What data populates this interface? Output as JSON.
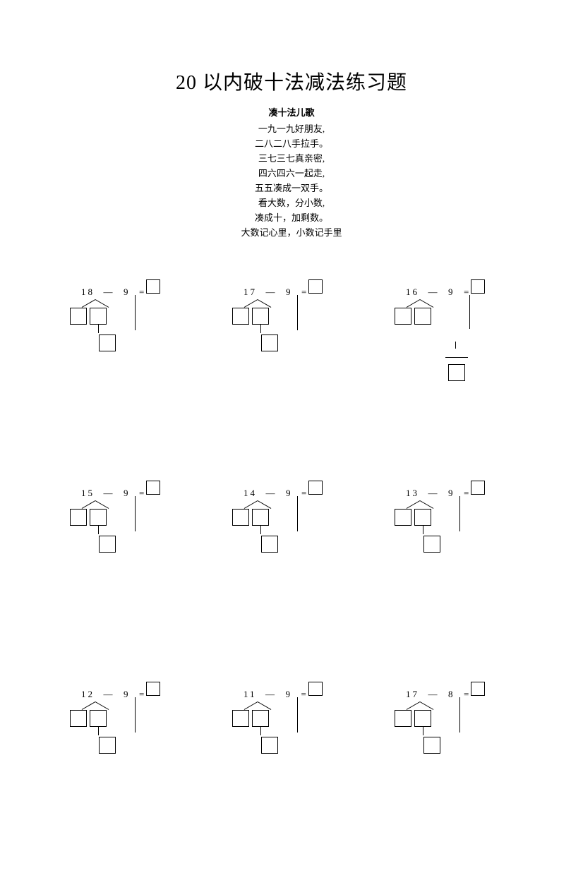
{
  "title": "20 以内破十法减法练习题",
  "subtitle": "凑十法儿歌",
  "poem": [
    "一九一九好朋友,",
    "二八二八手拉手。",
    "三七三七真亲密,",
    "四六四六一起走,",
    "五五凑成一双手。",
    "看大数，分小数,",
    "凑成十，加剩数。",
    "大数记心里，小数记手里"
  ],
  "problems": [
    {
      "a": "18",
      "op": "—",
      "b": "9",
      "eq": "="
    },
    {
      "a": "17",
      "op": "—",
      "b": "9",
      "eq": "="
    },
    {
      "a": "16",
      "op": "—",
      "b": "9",
      "eq": "="
    },
    {
      "a": "15",
      "op": "—",
      "b": "9",
      "eq": "="
    },
    {
      "a": "14",
      "op": "—",
      "b": "9",
      "eq": "="
    },
    {
      "a": "13",
      "op": "—",
      "b": "9",
      "eq": "="
    },
    {
      "a": "12",
      "op": "—",
      "b": "9",
      "eq": "="
    },
    {
      "a": "11",
      "op": "—",
      "b": "9",
      "eq": "="
    },
    {
      "a": "17",
      "op": "—",
      "b": "8",
      "eq": "="
    }
  ],
  "colors": {
    "text": "#000000",
    "background": "#ffffff",
    "line": "#000000"
  },
  "typography": {
    "title_fontsize": 28,
    "body_fontsize": 13,
    "subtitle_fontsize": 13
  }
}
